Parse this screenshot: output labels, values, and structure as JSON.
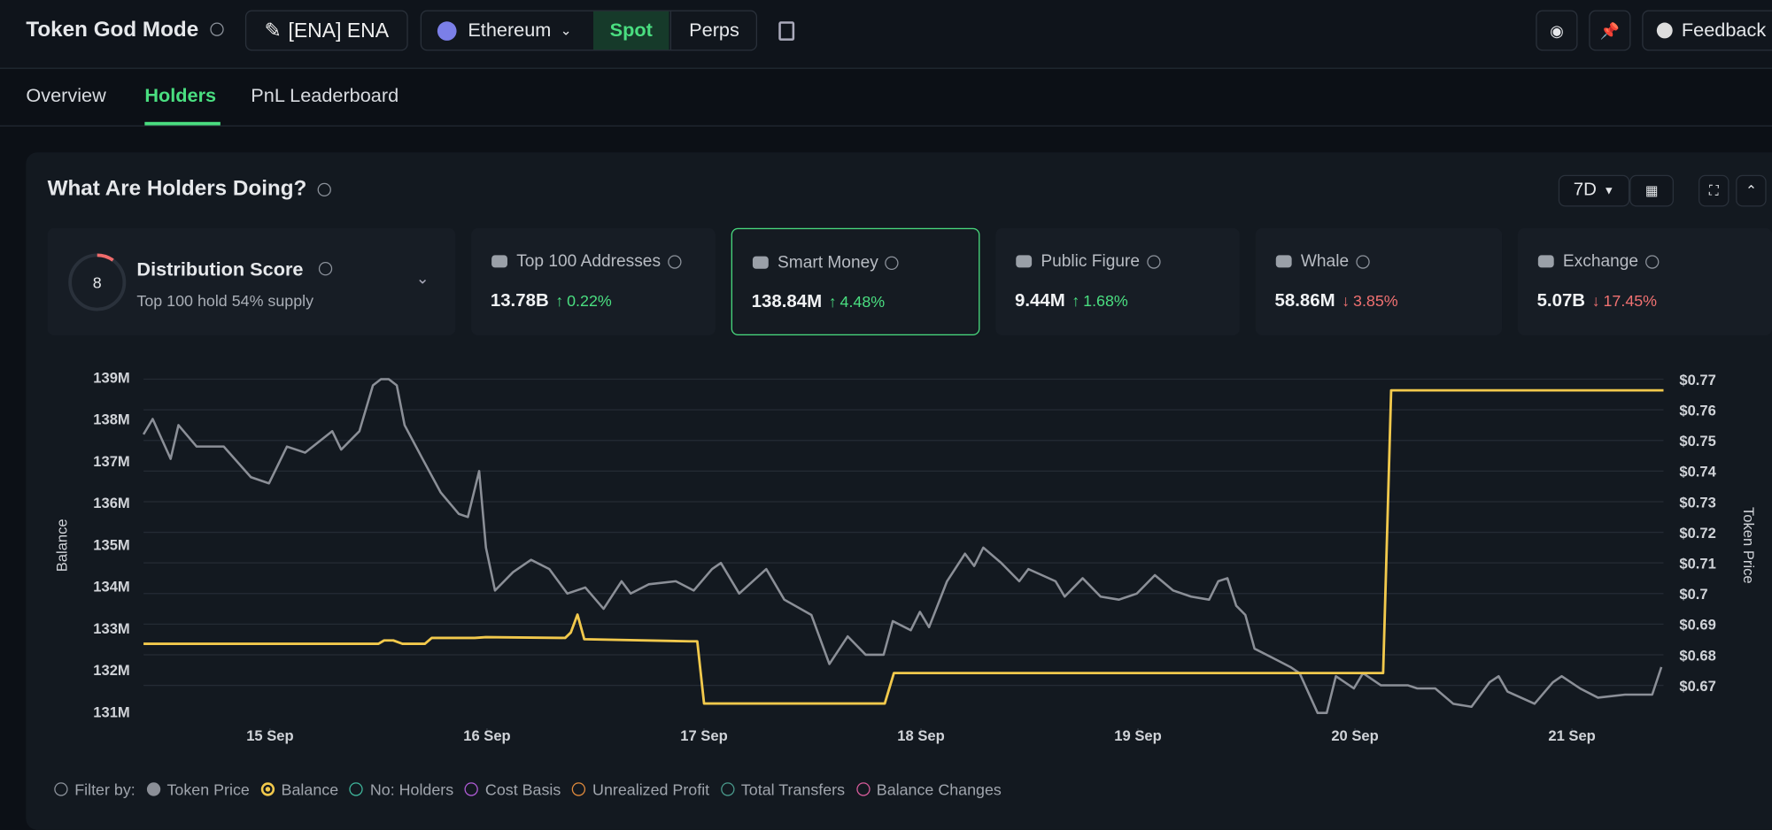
{
  "header": {
    "title": "Token God Mode",
    "token": "[ENA] ENA",
    "chain": "Ethereum",
    "market_tabs": [
      "Spot",
      "Perps"
    ],
    "feedback": "Feedback"
  },
  "tabs": [
    "Overview",
    "Holders",
    "PnL Leaderboard"
  ],
  "panel": {
    "title": "What Are Holders Doing?",
    "range": "7D"
  },
  "distribution": {
    "score": "8",
    "title": "Distribution Score",
    "subtitle": "Top 100 hold 54% supply"
  },
  "cards": [
    {
      "label": "Top 100 Addresses",
      "value": "13.78B",
      "change": "0.22%",
      "direction": "up"
    },
    {
      "label": "Smart Money",
      "value": "138.84M",
      "change": "4.48%",
      "direction": "up",
      "selected": true
    },
    {
      "label": "Public Figure",
      "value": "9.44M",
      "change": "1.68%",
      "direction": "up"
    },
    {
      "label": "Whale",
      "value": "58.86M",
      "change": "3.85%",
      "direction": "down"
    },
    {
      "label": "Exchange",
      "value": "5.07B",
      "change": "17.45%",
      "direction": "down"
    }
  ],
  "filters": {
    "label": "Filter by:",
    "items": [
      {
        "name": "Token Price",
        "color": "#8b8f97",
        "checked": false
      },
      {
        "name": "Balance",
        "color": "#f2c94c",
        "checked": true
      },
      {
        "name": "No: Holders",
        "color": "#3fb59b",
        "checked": false
      },
      {
        "name": "Cost Basis",
        "color": "#b05bd6",
        "checked": false
      },
      {
        "name": "Unrealized Profit",
        "color": "#e08a3c",
        "checked": false
      },
      {
        "name": "Total Transfers",
        "color": "#4a9a8c",
        "checked": false
      },
      {
        "name": "Balance Changes",
        "color": "#d65b9a",
        "checked": false
      }
    ]
  },
  "chart_data": {
    "type": "line",
    "y_label": "Balance",
    "y2_label": "Token Price",
    "grid": true,
    "xlim": [
      14.417,
      21.422
    ],
    "xticks": [
      {
        "value": 15,
        "label": "15 Sep"
      },
      {
        "value": 16,
        "label": "16 Sep"
      },
      {
        "value": 17,
        "label": "17 Sep"
      },
      {
        "value": 18,
        "label": "18 Sep"
      },
      {
        "value": 19,
        "label": "19 Sep"
      },
      {
        "value": 20,
        "label": "20 Sep"
      },
      {
        "value": 21,
        "label": "21 Sep"
      }
    ],
    "ylim": [
      130.6,
      139.24
    ],
    "yticks": [
      {
        "value": 131,
        "label": "131M"
      },
      {
        "value": 132,
        "label": "132M"
      },
      {
        "value": 133,
        "label": "133M"
      },
      {
        "value": 134,
        "label": "134M"
      },
      {
        "value": 135,
        "label": "135M"
      },
      {
        "value": 136,
        "label": "136M"
      },
      {
        "value": 137,
        "label": "137M"
      },
      {
        "value": 138,
        "label": "138M"
      },
      {
        "value": 139,
        "label": "139M"
      }
    ],
    "y2lim": [
      0.656,
      0.774
    ],
    "y2ticks": [
      {
        "value": 0.67,
        "label": "$0.67"
      },
      {
        "value": 0.68,
        "label": "$0.68"
      },
      {
        "value": 0.69,
        "label": "$0.69"
      },
      {
        "value": 0.7,
        "label": "$0.7"
      },
      {
        "value": 0.71,
        "label": "$0.71"
      },
      {
        "value": 0.72,
        "label": "$0.72"
      },
      {
        "value": 0.73,
        "label": "$0.73"
      },
      {
        "value": 0.74,
        "label": "$0.74"
      },
      {
        "value": 0.75,
        "label": "$0.75"
      },
      {
        "value": 0.76,
        "label": "$0.76"
      },
      {
        "value": 0.77,
        "label": "$0.77"
      }
    ],
    "series": [
      {
        "name": "Token Price",
        "color": "#8b8f97",
        "axis": "y2",
        "x": [
          14.417,
          14.459,
          14.542,
          14.578,
          14.662,
          14.787,
          14.912,
          14.995,
          15.078,
          15.162,
          15.287,
          15.328,
          15.412,
          15.474,
          15.511,
          15.547,
          15.584,
          15.62,
          15.703,
          15.787,
          15.87,
          15.912,
          15.964,
          15.995,
          16.037,
          16.12,
          16.203,
          16.287,
          16.37,
          16.453,
          16.537,
          16.62,
          16.662,
          16.745,
          16.87,
          16.953,
          17.037,
          17.078,
          17.162,
          17.287,
          17.37,
          17.495,
          17.578,
          17.662,
          17.745,
          17.828,
          17.87,
          17.953,
          17.995,
          18.037,
          18.12,
          18.203,
          18.245,
          18.287,
          18.37,
          18.453,
          18.495,
          18.62,
          18.662,
          18.745,
          18.828,
          18.912,
          18.995,
          19.078,
          19.162,
          19.245,
          19.328,
          19.37,
          19.412,
          19.453,
          19.495,
          19.537,
          19.62,
          19.703,
          19.745,
          19.828,
          19.87,
          19.912,
          19.995,
          20.037,
          20.12,
          20.245,
          20.287,
          20.37,
          20.453,
          20.537,
          20.62,
          20.662,
          20.703,
          20.828,
          20.912,
          20.953,
          21.037,
          21.12,
          21.245,
          21.37,
          21.412
        ],
        "values": [
          0.752,
          0.757,
          0.744,
          0.755,
          0.748,
          0.748,
          0.738,
          0.736,
          0.748,
          0.746,
          0.753,
          0.747,
          0.753,
          0.768,
          0.77,
          0.77,
          0.768,
          0.755,
          0.744,
          0.733,
          0.726,
          0.725,
          0.74,
          0.715,
          0.701,
          0.707,
          0.711,
          0.708,
          0.7,
          0.702,
          0.695,
          0.704,
          0.7,
          0.703,
          0.704,
          0.701,
          0.708,
          0.71,
          0.7,
          0.708,
          0.698,
          0.693,
          0.677,
          0.686,
          0.68,
          0.68,
          0.691,
          0.688,
          0.694,
          0.689,
          0.704,
          0.713,
          0.709,
          0.715,
          0.71,
          0.704,
          0.708,
          0.704,
          0.699,
          0.705,
          0.699,
          0.698,
          0.7,
          0.706,
          0.701,
          0.699,
          0.698,
          0.704,
          0.705,
          0.696,
          0.693,
          0.682,
          0.679,
          0.676,
          0.674,
          0.661,
          0.661,
          0.673,
          0.669,
          0.674,
          0.67,
          0.67,
          0.669,
          0.669,
          0.664,
          0.663,
          0.671,
          0.673,
          0.668,
          0.664,
          0.671,
          0.673,
          0.669,
          0.666,
          0.667,
          0.667,
          0.676
        ]
      },
      {
        "name": "Balance",
        "color": "#f2c94c",
        "axis": "y",
        "x": [
          14.417,
          15.5,
          15.526,
          15.568,
          15.61,
          15.714,
          15.745,
          15.943,
          15.995,
          16.36,
          16.386,
          16.417,
          16.448,
          16.932,
          16.969,
          17.0,
          17.833,
          17.875,
          20.13,
          20.167,
          21.422
        ],
        "values": [
          132.62,
          132.62,
          132.7,
          132.7,
          132.62,
          132.62,
          132.76,
          132.76,
          132.78,
          132.76,
          132.89,
          133.32,
          132.73,
          132.68,
          132.68,
          131.19,
          131.19,
          131.92,
          131.92,
          138.68,
          138.68
        ]
      }
    ]
  }
}
